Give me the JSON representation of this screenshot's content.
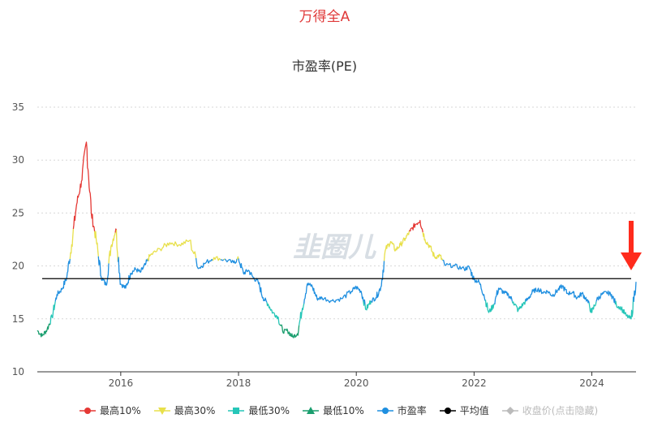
{
  "header": {
    "title": "万得全A"
  },
  "chart_data": {
    "type": "line",
    "title": "市盈率(PE)",
    "watermark": "韭圈儿",
    "xlabel": "",
    "ylabel": "",
    "x_ticks": [
      "2016",
      "2018",
      "2020",
      "2022",
      "2024"
    ],
    "y_ticks": [
      10,
      15,
      20,
      25,
      30,
      35
    ],
    "xlim": [
      "2014-08",
      "2024-10"
    ],
    "ylim": [
      10,
      35
    ],
    "grid": true,
    "average_line": 18.8,
    "legend_position": "bottom",
    "series": [
      {
        "name": "市盈率",
        "color": "#1f8fe0",
        "points": [
          [
            "2014-08",
            13.9
          ],
          [
            "2014-09",
            13.4
          ],
          [
            "2014-10",
            14.0
          ],
          [
            "2014-11",
            15.2
          ],
          [
            "2014-12",
            17.3
          ],
          [
            "2015-01",
            17.8
          ],
          [
            "2015-02",
            18.9
          ],
          [
            "2015-03",
            22.0
          ],
          [
            "2015-04",
            25.8
          ],
          [
            "2015-05",
            28.0
          ],
          [
            "2015-06",
            31.7
          ],
          [
            "2015-07",
            25.0
          ],
          [
            "2015-08",
            22.5
          ],
          [
            "2015-09",
            19.0
          ],
          [
            "2015-10",
            18.2
          ],
          [
            "2015-11",
            21.8
          ],
          [
            "2015-12",
            23.5
          ],
          [
            "2016-01",
            18.3
          ],
          [
            "2016-02",
            17.9
          ],
          [
            "2016-03",
            19.3
          ],
          [
            "2016-04",
            19.7
          ],
          [
            "2016-05",
            19.4
          ],
          [
            "2016-06",
            20.1
          ],
          [
            "2016-07",
            21.0
          ],
          [
            "2016-09",
            21.6
          ],
          [
            "2016-11",
            22.2
          ],
          [
            "2017-01",
            22.0
          ],
          [
            "2017-03",
            22.4
          ],
          [
            "2017-05",
            19.8
          ],
          [
            "2017-06",
            20.2
          ],
          [
            "2017-08",
            20.8
          ],
          [
            "2017-10",
            20.6
          ],
          [
            "2017-12",
            20.3
          ],
          [
            "2018-01",
            20.7
          ],
          [
            "2018-02",
            19.3
          ],
          [
            "2018-03",
            19.6
          ],
          [
            "2018-04",
            18.9
          ],
          [
            "2018-05",
            18.5
          ],
          [
            "2018-06",
            17.0
          ],
          [
            "2018-07",
            16.4
          ],
          [
            "2018-08",
            15.6
          ],
          [
            "2018-09",
            15.2
          ],
          [
            "2018-10",
            13.8
          ],
          [
            "2018-11",
            13.9
          ],
          [
            "2018-12",
            13.3
          ],
          [
            "2019-01",
            13.6
          ],
          [
            "2019-02",
            16.0
          ],
          [
            "2019-03",
            18.3
          ],
          [
            "2019-04",
            18.1
          ],
          [
            "2019-05",
            16.9
          ],
          [
            "2019-06",
            17.0
          ],
          [
            "2019-08",
            16.7
          ],
          [
            "2019-10",
            16.9
          ],
          [
            "2019-12",
            17.6
          ],
          [
            "2020-01",
            18.0
          ],
          [
            "2020-02",
            17.6
          ],
          [
            "2020-03",
            15.9
          ],
          [
            "2020-04",
            16.7
          ],
          [
            "2020-05",
            17.0
          ],
          [
            "2020-06",
            18.0
          ],
          [
            "2020-07",
            21.6
          ],
          [
            "2020-08",
            22.3
          ],
          [
            "2020-09",
            21.5
          ],
          [
            "2020-10",
            22.0
          ],
          [
            "2020-11",
            22.6
          ],
          [
            "2020-12",
            23.3
          ],
          [
            "2021-01",
            23.9
          ],
          [
            "2021-02",
            24.3
          ],
          [
            "2021-03",
            22.5
          ],
          [
            "2021-04",
            21.8
          ],
          [
            "2021-05",
            20.8
          ],
          [
            "2021-06",
            21.0
          ],
          [
            "2021-07",
            20.1
          ],
          [
            "2021-09",
            20.0
          ],
          [
            "2021-11",
            19.7
          ],
          [
            "2021-12",
            19.9
          ],
          [
            "2022-01",
            18.7
          ],
          [
            "2022-02",
            18.5
          ],
          [
            "2022-03",
            17.3
          ],
          [
            "2022-04",
            15.6
          ],
          [
            "2022-05",
            16.3
          ],
          [
            "2022-06",
            17.9
          ],
          [
            "2022-07",
            17.5
          ],
          [
            "2022-08",
            17.3
          ],
          [
            "2022-09",
            16.6
          ],
          [
            "2022-10",
            15.8
          ],
          [
            "2022-11",
            16.4
          ],
          [
            "2022-12",
            16.9
          ],
          [
            "2023-01",
            17.6
          ],
          [
            "2023-02",
            17.8
          ],
          [
            "2023-03",
            17.5
          ],
          [
            "2023-04",
            17.6
          ],
          [
            "2023-05",
            17.2
          ],
          [
            "2023-06",
            17.7
          ],
          [
            "2023-07",
            18.1
          ],
          [
            "2023-08",
            17.4
          ],
          [
            "2023-09",
            17.5
          ],
          [
            "2023-10",
            17.0
          ],
          [
            "2023-11",
            17.4
          ],
          [
            "2023-12",
            16.8
          ],
          [
            "2024-01",
            15.6
          ],
          [
            "2024-02",
            16.8
          ],
          [
            "2024-03",
            17.3
          ],
          [
            "2024-04",
            17.5
          ],
          [
            "2024-05",
            17.3
          ],
          [
            "2024-06",
            16.3
          ],
          [
            "2024-07",
            16.0
          ],
          [
            "2024-08",
            15.3
          ],
          [
            "2024-09",
            15.0
          ],
          [
            "2024-10",
            18.5
          ]
        ]
      },
      {
        "name": "最高10%",
        "color": "#e53935",
        "threshold": 23.3,
        "type": "above"
      },
      {
        "name": "最高30%",
        "color": "#e8e04a",
        "threshold": 20.6,
        "type": "above"
      },
      {
        "name": "最低30%",
        "color": "#26c6b8",
        "threshold": 16.6,
        "type": "below"
      },
      {
        "name": "最低10%",
        "color": "#1a9e6e",
        "threshold": 14.5,
        "type": "below"
      },
      {
        "name": "平均值",
        "color": "#000000",
        "value": 18.8
      },
      {
        "name": "收盘价(点击隐藏)",
        "color": "#bbbbbb",
        "hidden": true
      }
    ]
  }
}
